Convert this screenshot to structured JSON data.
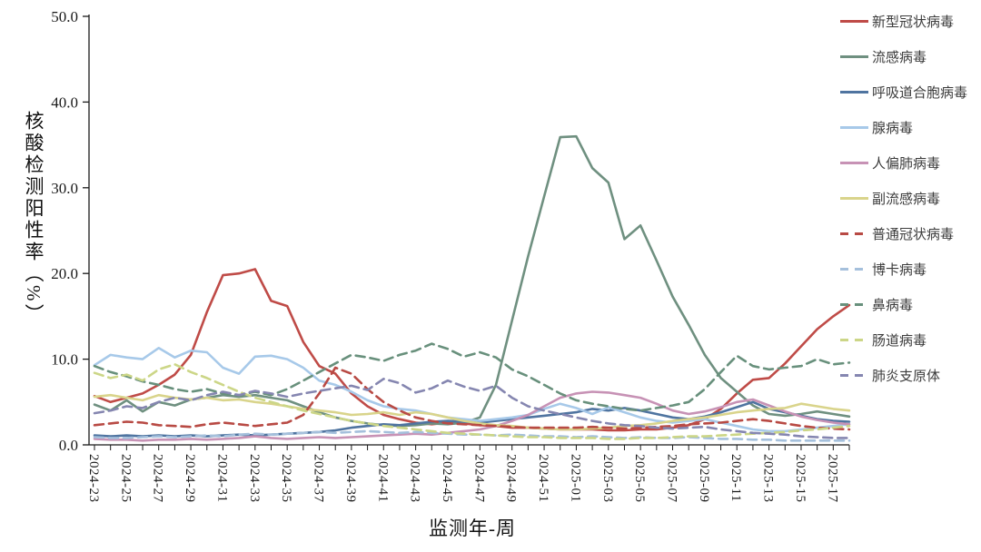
{
  "chart_data": {
    "type": "line",
    "title": "",
    "xlabel": "监测年-周",
    "ylabel": "核酸检测阳性率（%）",
    "ylim": [
      0,
      50
    ],
    "grid": false,
    "legend_position": "right",
    "y_ticks": [
      "0.0",
      "10.0",
      "20.0",
      "30.0",
      "40.0",
      "50.0"
    ],
    "x_labeled_every": 2,
    "x": [
      "2024-23",
      "2024-24",
      "2024-25",
      "2024-26",
      "2024-27",
      "2024-28",
      "2024-29",
      "2024-30",
      "2024-31",
      "2024-32",
      "2024-33",
      "2024-34",
      "2024-35",
      "2024-36",
      "2024-37",
      "2024-38",
      "2024-39",
      "2024-40",
      "2024-41",
      "2024-42",
      "2024-43",
      "2024-44",
      "2024-45",
      "2024-46",
      "2024-47",
      "2024-48",
      "2024-49",
      "2024-50",
      "2024-51",
      "2024-52",
      "2025-01",
      "2025-02",
      "2025-03",
      "2025-04",
      "2025-05",
      "2025-06",
      "2025-07",
      "2025-08",
      "2025-09",
      "2025-10",
      "2025-11",
      "2025-12",
      "2025-13",
      "2025-14",
      "2025-15",
      "2025-16",
      "2025-17",
      "2025-18"
    ],
    "series": [
      {
        "name": "新型冠状病毒",
        "color": "#bf4b47",
        "dash": false,
        "values": [
          5.7,
          5.0,
          5.5,
          6.0,
          7.0,
          8.2,
          10.5,
          15.5,
          19.8,
          20.0,
          20.5,
          16.8,
          16.2,
          12.0,
          9.2,
          8.3,
          6.0,
          4.5,
          3.5,
          3.0,
          2.6,
          2.4,
          2.6,
          2.5,
          2.3,
          2.2,
          2.0,
          2.0,
          1.9,
          1.8,
          1.8,
          1.8,
          1.7,
          1.7,
          1.8,
          1.8,
          2.0,
          2.3,
          3.0,
          4.2,
          6.0,
          7.6,
          7.8,
          9.5,
          11.5,
          13.5,
          15.0,
          16.3
        ]
      },
      {
        "name": "流感病毒",
        "color": "#6f9080",
        "dash": false,
        "values": [
          4.7,
          4.0,
          5.2,
          3.9,
          5.0,
          4.6,
          5.3,
          5.5,
          5.8,
          5.6,
          5.8,
          5.5,
          5.2,
          4.5,
          3.8,
          3.2,
          2.8,
          2.5,
          2.3,
          2.2,
          2.3,
          2.5,
          2.4,
          2.6,
          3.2,
          7.0,
          14.5,
          22.0,
          29.0,
          35.9,
          36.0,
          32.3,
          30.6,
          24.0,
          25.6,
          21.5,
          17.3,
          14.0,
          10.5,
          7.8,
          6.2,
          4.6,
          3.6,
          3.4,
          3.6,
          3.9,
          3.6,
          3.3
        ]
      },
      {
        "name": "呼吸道合胞病毒",
        "color": "#4f74a0",
        "dash": false,
        "values": [
          1.1,
          1.0,
          1.1,
          1.0,
          1.1,
          1.0,
          1.1,
          1.0,
          1.1,
          1.2,
          1.1,
          1.2,
          1.3,
          1.4,
          1.5,
          1.7,
          2.0,
          2.2,
          2.4,
          2.3,
          2.5,
          2.7,
          2.8,
          2.7,
          2.6,
          2.8,
          3.0,
          3.2,
          3.4,
          3.6,
          3.8,
          4.2,
          4.0,
          4.3,
          4.0,
          3.6,
          3.2,
          3.0,
          3.3,
          3.8,
          4.4,
          5.0,
          4.2,
          3.8,
          3.4,
          3.0,
          2.8,
          2.7
        ]
      },
      {
        "name": "腺病毒",
        "color": "#a7c9e9",
        "dash": false,
        "values": [
          9.3,
          10.5,
          10.2,
          10.0,
          11.3,
          10.2,
          11.0,
          10.8,
          9.0,
          8.3,
          10.3,
          10.4,
          10.0,
          9.0,
          7.5,
          7.0,
          6.2,
          5.2,
          4.5,
          4.2,
          4.0,
          3.6,
          3.2,
          3.0,
          2.8,
          3.0,
          3.2,
          3.5,
          4.2,
          4.8,
          4.3,
          3.6,
          4.4,
          3.8,
          3.2,
          2.8,
          2.6,
          2.8,
          3.0,
          2.6,
          2.2,
          1.8,
          1.6,
          1.6,
          1.8,
          2.0,
          2.2,
          2.4
        ]
      },
      {
        "name": "人偏肺病毒",
        "color": "#c792b5",
        "dash": false,
        "values": [
          0.7,
          0.6,
          0.6,
          0.5,
          0.6,
          0.6,
          0.7,
          0.6,
          0.7,
          0.8,
          1.0,
          0.8,
          0.7,
          0.8,
          0.9,
          0.8,
          0.9,
          1.0,
          1.1,
          1.2,
          1.3,
          1.2,
          1.4,
          1.6,
          1.8,
          2.2,
          2.8,
          3.5,
          4.5,
          5.5,
          6.0,
          6.2,
          6.1,
          5.8,
          5.5,
          4.8,
          4.0,
          3.6,
          3.9,
          4.4,
          5.0,
          5.3,
          4.6,
          3.9,
          3.3,
          2.9,
          2.6,
          2.4
        ]
      },
      {
        "name": "副流感病毒",
        "color": "#d9d48b",
        "dash": false,
        "values": [
          5.6,
          5.8,
          5.5,
          5.2,
          5.8,
          5.5,
          5.3,
          5.5,
          5.2,
          5.3,
          5.0,
          4.8,
          4.5,
          4.2,
          4.0,
          3.8,
          3.5,
          3.6,
          3.8,
          3.5,
          3.8,
          3.6,
          3.2,
          2.8,
          2.5,
          2.3,
          2.2,
          2.0,
          1.9,
          1.8,
          1.8,
          1.9,
          2.0,
          2.2,
          2.3,
          2.5,
          2.8,
          3.0,
          3.2,
          3.5,
          3.8,
          4.0,
          4.2,
          4.3,
          4.8,
          4.5,
          4.2,
          4.0
        ]
      },
      {
        "name": "普通冠状病毒",
        "color": "#b84a44",
        "dash": true,
        "values": [
          2.3,
          2.5,
          2.7,
          2.6,
          2.3,
          2.2,
          2.1,
          2.4,
          2.6,
          2.4,
          2.2,
          2.4,
          2.6,
          3.5,
          6.0,
          9.0,
          8.3,
          6.5,
          5.0,
          4.0,
          3.2,
          2.8,
          2.5,
          2.4,
          2.3,
          2.2,
          2.1,
          2.0,
          2.0,
          2.0,
          2.0,
          2.1,
          2.0,
          1.9,
          2.0,
          2.1,
          2.2,
          2.4,
          2.5,
          2.6,
          2.8,
          3.0,
          2.8,
          2.5,
          2.2,
          2.0,
          1.9,
          1.8
        ]
      },
      {
        "name": "博卡病毒",
        "color": "#a5c0dc",
        "dash": true,
        "values": [
          0.9,
          0.8,
          0.8,
          0.9,
          1.0,
          0.9,
          1.0,
          1.1,
          1.0,
          1.2,
          1.3,
          1.2,
          1.3,
          1.4,
          1.5,
          1.4,
          1.5,
          1.6,
          1.5,
          1.4,
          1.5,
          1.4,
          1.3,
          1.2,
          1.2,
          1.1,
          1.2,
          1.1,
          1.0,
          1.0,
          0.9,
          1.0,
          0.9,
          0.8,
          0.9,
          0.8,
          0.8,
          0.9,
          0.8,
          0.7,
          0.7,
          0.6,
          0.6,
          0.5,
          0.5,
          0.5,
          0.5,
          0.5
        ]
      },
      {
        "name": "鼻病毒",
        "color": "#68907c",
        "dash": true,
        "values": [
          9.2,
          8.5,
          8.0,
          7.4,
          7.0,
          6.5,
          6.2,
          6.5,
          6.0,
          5.8,
          6.2,
          5.8,
          6.5,
          7.5,
          8.5,
          9.5,
          10.5,
          10.2,
          9.8,
          10.5,
          11.0,
          11.8,
          11.2,
          10.3,
          10.8,
          10.2,
          8.8,
          8.0,
          7.0,
          6.0,
          5.2,
          4.8,
          4.5,
          4.2,
          4.0,
          4.3,
          4.6,
          5.0,
          6.5,
          8.5,
          10.4,
          9.2,
          8.8,
          9.0,
          9.2,
          10.0,
          9.4,
          9.6
        ]
      },
      {
        "name": "肠道病毒",
        "color": "#ccd687",
        "dash": true,
        "values": [
          8.4,
          7.8,
          8.2,
          7.5,
          8.8,
          9.4,
          8.5,
          7.8,
          7.0,
          6.2,
          5.5,
          5.0,
          4.5,
          4.0,
          3.6,
          3.2,
          2.8,
          2.5,
          2.2,
          2.0,
          1.8,
          1.6,
          1.4,
          1.3,
          1.2,
          1.1,
          1.0,
          0.9,
          0.9,
          0.8,
          0.8,
          0.8,
          0.7,
          0.7,
          0.8,
          0.8,
          0.9,
          1.0,
          1.0,
          1.1,
          1.2,
          1.3,
          1.4,
          1.5,
          1.7,
          1.8,
          2.0,
          2.2
        ]
      },
      {
        "name": "肺炎支原体",
        "color": "#8586b0",
        "dash": true,
        "values": [
          3.7,
          4.0,
          4.5,
          4.3,
          5.0,
          5.5,
          5.2,
          5.8,
          6.2,
          5.8,
          6.3,
          6.0,
          5.6,
          6.0,
          6.3,
          6.6,
          6.9,
          6.4,
          7.7,
          7.2,
          6.1,
          6.6,
          7.5,
          6.8,
          6.3,
          6.9,
          5.5,
          4.5,
          4.0,
          3.6,
          3.2,
          2.8,
          2.5,
          2.3,
          2.2,
          2.0,
          1.9,
          2.0,
          2.1,
          1.8,
          1.6,
          1.4,
          1.3,
          1.2,
          1.0,
          0.9,
          0.8,
          0.8
        ]
      }
    ]
  }
}
